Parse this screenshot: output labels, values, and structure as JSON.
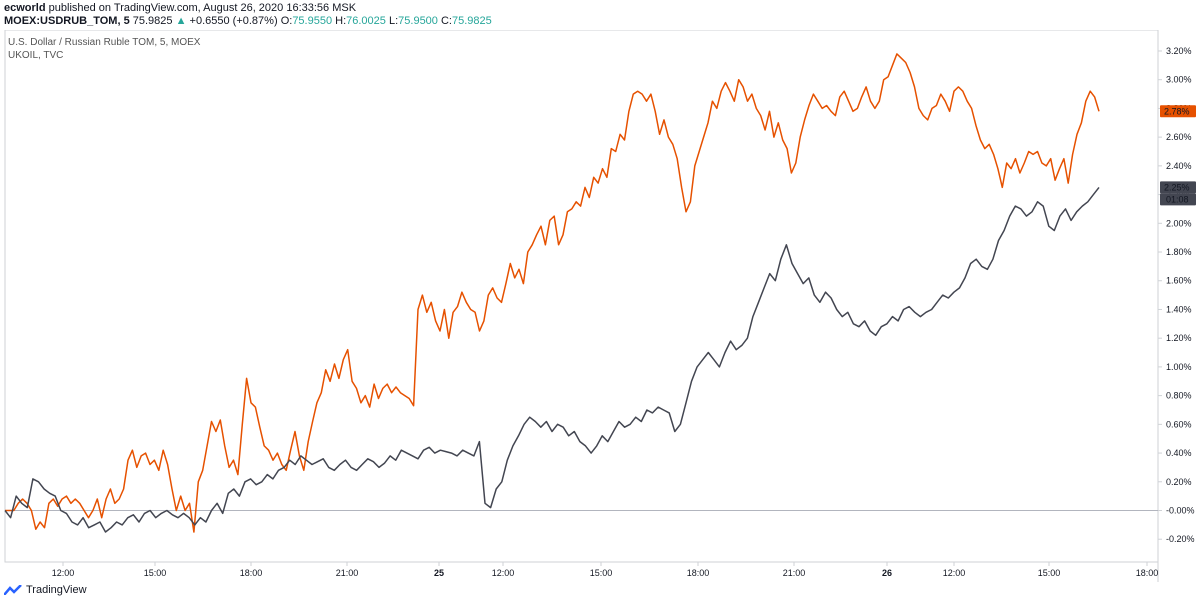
{
  "header": {
    "author": "ecworld",
    "published_text": "published on TradingView.com, August 26, 2020 16:33:56 MSK",
    "symbol": "MOEX:USDRUB_TOM, 5",
    "last": "75.9825",
    "arrow": "▲",
    "change": "+0.6550 (+0.87%)",
    "o_label": "O:",
    "o": "75.9550",
    "h_label": "H:",
    "h": "76.0025",
    "l_label": "L:",
    "l": "75.9500",
    "c_label": "C:",
    "c": "75.9825"
  },
  "legend": {
    "main": "U.S. Dollar / Russian Ruble TOM, 5, MOEX",
    "compare": "UKOIL, TVC"
  },
  "footer": {
    "brand": "TradingView",
    "logo_icon": "tradingview-logo-icon"
  },
  "chart_data": {
    "type": "line",
    "x_ticks": [
      "12:00",
      "15:00",
      "18:00",
      "21:00",
      "25",
      "12:00",
      "15:00",
      "18:00",
      "21:00",
      "26",
      "12:00",
      "15:00",
      "18:00"
    ],
    "y_ticks": [
      "3.20%",
      "3.00%",
      "2.80%",
      "2.60%",
      "2.40%",
      "2.20%",
      "2.00%",
      "1.80%",
      "1.60%",
      "1.40%",
      "1.20%",
      "1.00%",
      "0.80%",
      "0.60%",
      "0.40%",
      "0.20%",
      "-0.00%",
      "-0.20%"
    ],
    "ylim": [
      -0.3,
      3.3
    ],
    "colors": {
      "usdrub": "#e65100",
      "ukoil": "#434651",
      "zero_line": "#b2b5be"
    },
    "last_labels": {
      "usdrub": "2.78%",
      "ukoil": "2.25%",
      "countdown": "01:08"
    },
    "series": [
      {
        "key": "usdrub",
        "values": [
          0.0,
          0.0,
          0.0,
          0.05,
          0.08,
          0.05,
          0.0,
          -0.13,
          -0.08,
          -0.12,
          0.05,
          0.08,
          0.03,
          0.08,
          0.1,
          0.05,
          0.08,
          0.05,
          0.0,
          -0.05,
          0.0,
          0.08,
          -0.05,
          0.08,
          0.15,
          0.05,
          0.08,
          0.15,
          0.35,
          0.42,
          0.3,
          0.38,
          0.4,
          0.32,
          0.35,
          0.28,
          0.42,
          0.32,
          0.15,
          0.0,
          0.1,
          0.0,
          0.05,
          -0.15,
          0.2,
          0.28,
          0.45,
          0.62,
          0.55,
          0.63,
          0.45,
          0.3,
          0.35,
          0.25,
          0.6,
          0.92,
          0.75,
          0.72,
          0.58,
          0.45,
          0.42,
          0.35,
          0.4,
          0.32,
          0.28,
          0.42,
          0.55,
          0.38,
          0.28,
          0.48,
          0.62,
          0.75,
          0.82,
          0.98,
          0.9,
          1.02,
          0.92,
          1.05,
          1.12,
          0.9,
          0.85,
          0.75,
          0.8,
          0.72,
          0.88,
          0.78,
          0.85,
          0.88,
          0.82,
          0.86,
          0.82,
          0.8,
          0.78,
          0.73,
          1.4,
          1.5,
          1.38,
          1.45,
          1.32,
          1.25,
          1.4,
          1.2,
          1.38,
          1.42,
          1.52,
          1.45,
          1.4,
          1.38,
          1.25,
          1.32,
          1.5,
          1.55,
          1.48,
          1.45,
          1.58,
          1.72,
          1.62,
          1.68,
          1.58,
          1.8,
          1.85,
          1.92,
          1.98,
          1.85,
          2.02,
          2.05,
          1.85,
          1.92,
          2.08,
          2.1,
          2.15,
          2.12,
          2.25,
          2.18,
          2.32,
          2.28,
          2.38,
          2.32,
          2.52,
          2.5,
          2.62,
          2.58,
          2.78,
          2.9,
          2.92,
          2.9,
          2.85,
          2.9,
          2.78,
          2.62,
          2.72,
          2.6,
          2.55,
          2.45,
          2.25,
          2.08,
          2.15,
          2.4,
          2.5,
          2.6,
          2.7,
          2.85,
          2.8,
          2.92,
          2.98,
          2.92,
          2.85,
          3.0,
          2.95,
          2.85,
          2.9,
          2.8,
          2.75,
          2.65,
          2.78,
          2.6,
          2.7,
          2.58,
          2.52,
          2.35,
          2.42,
          2.6,
          2.72,
          2.82,
          2.9,
          2.85,
          2.8,
          2.82,
          2.78,
          2.75,
          2.88,
          2.92,
          2.85,
          2.78,
          2.8,
          2.88,
          2.95,
          2.85,
          2.8,
          2.85,
          3.0,
          3.02,
          3.1,
          3.18,
          3.15,
          3.12,
          3.05,
          2.95,
          2.8,
          2.75,
          2.72,
          2.8,
          2.82,
          2.9,
          2.85,
          2.78,
          2.92,
          2.95,
          2.92,
          2.85,
          2.8,
          2.68,
          2.58,
          2.52,
          2.55,
          2.48,
          2.38,
          2.25,
          2.42,
          2.38,
          2.45,
          2.35,
          2.42,
          2.5,
          2.48,
          2.5,
          2.42,
          2.4,
          2.45,
          2.3,
          2.38,
          2.45,
          2.28,
          2.48,
          2.62,
          2.7,
          2.85,
          2.92,
          2.88,
          2.78
        ]
      },
      {
        "key": "ukoil",
        "values": [
          0.0,
          -0.05,
          0.1,
          0.05,
          0.02,
          0.22,
          0.2,
          0.15,
          0.12,
          0.1,
          0.0,
          -0.02,
          -0.08,
          -0.1,
          -0.05,
          -0.12,
          -0.1,
          -0.08,
          -0.15,
          -0.12,
          -0.08,
          -0.1,
          -0.05,
          -0.03,
          -0.08,
          -0.02,
          0.0,
          -0.05,
          -0.02,
          0.0,
          -0.03,
          -0.05,
          -0.02,
          -0.05,
          -0.1,
          -0.05,
          -0.08,
          0.0,
          0.05,
          -0.02,
          0.12,
          0.15,
          0.1,
          0.2,
          0.22,
          0.18,
          0.2,
          0.25,
          0.22,
          0.28,
          0.3,
          0.35,
          0.32,
          0.38,
          0.35,
          0.32,
          0.34,
          0.36,
          0.3,
          0.28,
          0.32,
          0.35,
          0.3,
          0.28,
          0.32,
          0.36,
          0.34,
          0.3,
          0.33,
          0.38,
          0.35,
          0.42,
          0.4,
          0.38,
          0.36,
          0.42,
          0.44,
          0.4,
          0.42,
          0.41,
          0.4,
          0.38,
          0.42,
          0.4,
          0.38,
          0.48,
          0.05,
          0.02,
          0.15,
          0.2,
          0.35,
          0.45,
          0.52,
          0.6,
          0.65,
          0.62,
          0.58,
          0.62,
          0.55,
          0.6,
          0.58,
          0.52,
          0.55,
          0.48,
          0.45,
          0.4,
          0.45,
          0.52,
          0.48,
          0.55,
          0.62,
          0.58,
          0.6,
          0.65,
          0.62,
          0.7,
          0.68,
          0.72,
          0.7,
          0.68,
          0.55,
          0.6,
          0.75,
          0.9,
          1.0,
          1.05,
          1.1,
          1.05,
          1.0,
          1.1,
          1.18,
          1.12,
          1.15,
          1.2,
          1.35,
          1.45,
          1.55,
          1.65,
          1.6,
          1.75,
          1.85,
          1.72,
          1.65,
          1.58,
          1.62,
          1.5,
          1.45,
          1.52,
          1.48,
          1.4,
          1.35,
          1.38,
          1.3,
          1.28,
          1.32,
          1.25,
          1.22,
          1.28,
          1.3,
          1.35,
          1.32,
          1.4,
          1.42,
          1.38,
          1.35,
          1.38,
          1.4,
          1.45,
          1.5,
          1.48,
          1.52,
          1.55,
          1.62,
          1.72,
          1.75,
          1.7,
          1.68,
          1.75,
          1.88,
          1.95,
          2.05,
          2.12,
          2.1,
          2.05,
          2.08,
          2.15,
          2.12,
          1.98,
          1.95,
          2.05,
          2.1,
          2.02,
          2.08,
          2.12,
          2.15,
          2.2,
          2.25
        ]
      }
    ]
  }
}
